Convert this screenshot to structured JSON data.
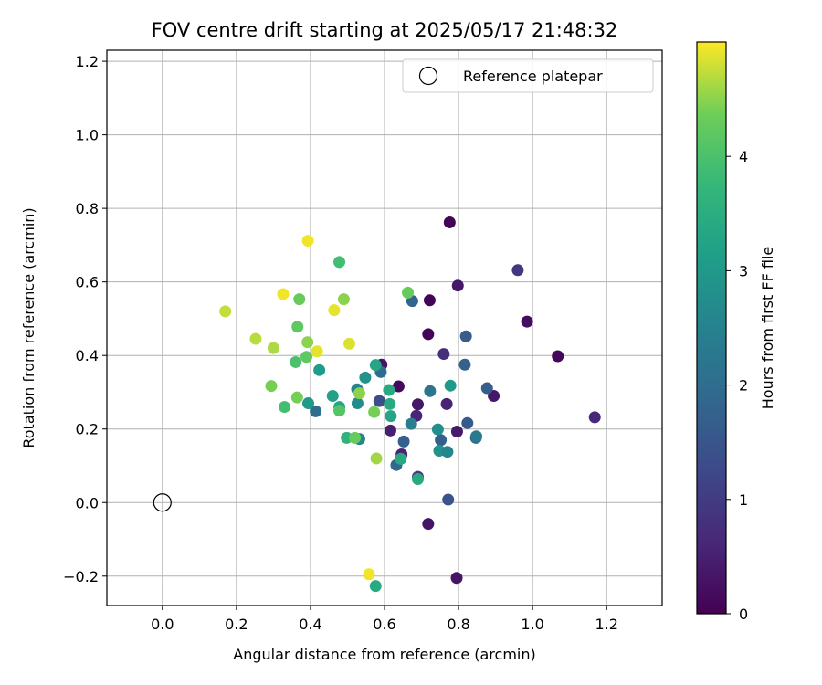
{
  "chart_data": {
    "type": "scatter",
    "title": "FOV centre drift starting at 2025/05/17 21:48:32",
    "xlabel": "Angular distance from reference (arcmin)",
    "ylabel": "Rotation from reference (arcmin)",
    "xlim": [
      -0.15,
      1.35
    ],
    "ylim": [
      -0.28,
      1.23
    ],
    "xticks": [
      "0.0",
      "0.2",
      "0.4",
      "0.6",
      "0.8",
      "1.0",
      "1.2"
    ],
    "xtick_values": [
      0.0,
      0.2,
      0.4,
      0.6,
      0.8,
      1.0,
      1.2
    ],
    "yticks": [
      "−0.2",
      "0.0",
      "0.2",
      "0.4",
      "0.6",
      "0.8",
      "1.0",
      "1.2"
    ],
    "ytick_values": [
      -0.2,
      0.0,
      0.2,
      0.4,
      0.6,
      0.8,
      1.0,
      1.2
    ],
    "grid": true,
    "legend": {
      "position": "top-right",
      "entries": [
        "Reference platepar"
      ]
    },
    "reference_point": {
      "x": 0.0,
      "y": 0.0
    },
    "colorbar": {
      "label": "Hours from first FF file",
      "colormap": "viridis",
      "range": [
        0,
        5
      ],
      "ticks": [
        "0",
        "1",
        "2",
        "3",
        "4"
      ],
      "tick_values": [
        0,
        1,
        2,
        3,
        4
      ]
    },
    "points": [
      {
        "x": 0.776,
        "y": 0.762,
        "t": 0.05
      },
      {
        "x": 0.722,
        "y": 0.55,
        "t": 0.05
      },
      {
        "x": 0.798,
        "y": 0.59,
        "t": 0.35
      },
      {
        "x": 0.718,
        "y": 0.458,
        "t": 0.05
      },
      {
        "x": 0.985,
        "y": 0.492,
        "t": 0.2
      },
      {
        "x": 1.068,
        "y": 0.398,
        "t": 0.1
      },
      {
        "x": 0.96,
        "y": 0.632,
        "t": 0.9
      },
      {
        "x": 1.168,
        "y": 0.232,
        "t": 0.65
      },
      {
        "x": 0.76,
        "y": 0.404,
        "t": 0.75
      },
      {
        "x": 0.592,
        "y": 0.375,
        "t": 0.3
      },
      {
        "x": 0.638,
        "y": 0.316,
        "t": 0.15
      },
      {
        "x": 0.69,
        "y": 0.267,
        "t": 0.35
      },
      {
        "x": 0.768,
        "y": 0.268,
        "t": 0.55
      },
      {
        "x": 0.895,
        "y": 0.29,
        "t": 0.35
      },
      {
        "x": 0.686,
        "y": 0.236,
        "t": 0.6
      },
      {
        "x": 0.616,
        "y": 0.196,
        "t": 0.5
      },
      {
        "x": 0.796,
        "y": 0.193,
        "t": 0.4
      },
      {
        "x": 0.646,
        "y": 0.131,
        "t": 0.6
      },
      {
        "x": 0.69,
        "y": 0.07,
        "t": 0.9
      },
      {
        "x": 0.718,
        "y": -0.058,
        "t": 0.3
      },
      {
        "x": 0.795,
        "y": -0.205,
        "t": 0.3
      },
      {
        "x": 0.586,
        "y": 0.276,
        "t": 1.4
      },
      {
        "x": 0.675,
        "y": 0.548,
        "t": 1.8
      },
      {
        "x": 0.82,
        "y": 0.452,
        "t": 1.65
      },
      {
        "x": 0.817,
        "y": 0.375,
        "t": 1.75
      },
      {
        "x": 0.877,
        "y": 0.311,
        "t": 1.65
      },
      {
        "x": 0.824,
        "y": 0.216,
        "t": 1.6
      },
      {
        "x": 0.847,
        "y": 0.176,
        "t": 1.85
      },
      {
        "x": 0.752,
        "y": 0.17,
        "t": 1.7
      },
      {
        "x": 0.652,
        "y": 0.166,
        "t": 1.75
      },
      {
        "x": 0.632,
        "y": 0.102,
        "t": 1.9
      },
      {
        "x": 0.772,
        "y": 0.008,
        "t": 1.45
      },
      {
        "x": 0.414,
        "y": 0.248,
        "t": 2.0
      },
      {
        "x": 0.59,
        "y": 0.355,
        "t": 2.0
      },
      {
        "x": 0.723,
        "y": 0.303,
        "t": 2.2
      },
      {
        "x": 0.672,
        "y": 0.214,
        "t": 2.4
      },
      {
        "x": 0.848,
        "y": 0.18,
        "t": 2.3
      },
      {
        "x": 0.526,
        "y": 0.308,
        "t": 2.5
      },
      {
        "x": 0.527,
        "y": 0.27,
        "t": 2.7
      },
      {
        "x": 0.532,
        "y": 0.173,
        "t": 2.6
      },
      {
        "x": 0.548,
        "y": 0.34,
        "t": 2.85
      },
      {
        "x": 0.744,
        "y": 0.199,
        "t": 2.8
      },
      {
        "x": 0.748,
        "y": 0.141,
        "t": 2.85
      },
      {
        "x": 0.77,
        "y": 0.138,
        "t": 2.6
      },
      {
        "x": 0.778,
        "y": 0.318,
        "t": 3.0
      },
      {
        "x": 0.394,
        "y": 0.27,
        "t": 3.0
      },
      {
        "x": 0.424,
        "y": 0.36,
        "t": 3.1
      },
      {
        "x": 0.46,
        "y": 0.29,
        "t": 3.2
      },
      {
        "x": 0.478,
        "y": 0.26,
        "t": 3.3
      },
      {
        "x": 0.576,
        "y": 0.374,
        "t": 3.3
      },
      {
        "x": 0.612,
        "y": 0.306,
        "t": 3.4
      },
      {
        "x": 0.614,
        "y": 0.268,
        "t": 3.4
      },
      {
        "x": 0.617,
        "y": 0.235,
        "t": 3.3
      },
      {
        "x": 0.644,
        "y": 0.119,
        "t": 3.4
      },
      {
        "x": 0.69,
        "y": 0.064,
        "t": 3.4
      },
      {
        "x": 0.498,
        "y": 0.176,
        "t": 3.6
      },
      {
        "x": 0.576,
        "y": -0.227,
        "t": 3.4
      },
      {
        "x": 0.33,
        "y": 0.26,
        "t": 3.9
      },
      {
        "x": 0.36,
        "y": 0.382,
        "t": 4.0
      },
      {
        "x": 0.478,
        "y": 0.654,
        "t": 3.9
      },
      {
        "x": 0.478,
        "y": 0.25,
        "t": 4.1
      },
      {
        "x": 0.365,
        "y": 0.478,
        "t": 4.2
      },
      {
        "x": 0.37,
        "y": 0.553,
        "t": 4.3
      },
      {
        "x": 0.389,
        "y": 0.396,
        "t": 4.2
      },
      {
        "x": 0.392,
        "y": 0.436,
        "t": 4.5
      },
      {
        "x": 0.364,
        "y": 0.286,
        "t": 4.4
      },
      {
        "x": 0.294,
        "y": 0.317,
        "t": 4.4
      },
      {
        "x": 0.49,
        "y": 0.553,
        "t": 4.5
      },
      {
        "x": 0.532,
        "y": 0.297,
        "t": 4.5
      },
      {
        "x": 0.572,
        "y": 0.246,
        "t": 4.4
      },
      {
        "x": 0.663,
        "y": 0.571,
        "t": 4.3
      },
      {
        "x": 0.52,
        "y": 0.176,
        "t": 4.3
      },
      {
        "x": 0.17,
        "y": 0.52,
        "t": 4.75
      },
      {
        "x": 0.252,
        "y": 0.445,
        "t": 4.7
      },
      {
        "x": 0.3,
        "y": 0.42,
        "t": 4.65
      },
      {
        "x": 0.578,
        "y": 0.12,
        "t": 4.6
      },
      {
        "x": 0.326,
        "y": 0.567,
        "t": 4.95
      },
      {
        "x": 0.393,
        "y": 0.712,
        "t": 4.95
      },
      {
        "x": 0.418,
        "y": 0.411,
        "t": 4.9
      },
      {
        "x": 0.464,
        "y": 0.523,
        "t": 4.9
      },
      {
        "x": 0.505,
        "y": 0.432,
        "t": 4.85
      },
      {
        "x": 0.558,
        "y": -0.195,
        "t": 4.95
      }
    ]
  }
}
